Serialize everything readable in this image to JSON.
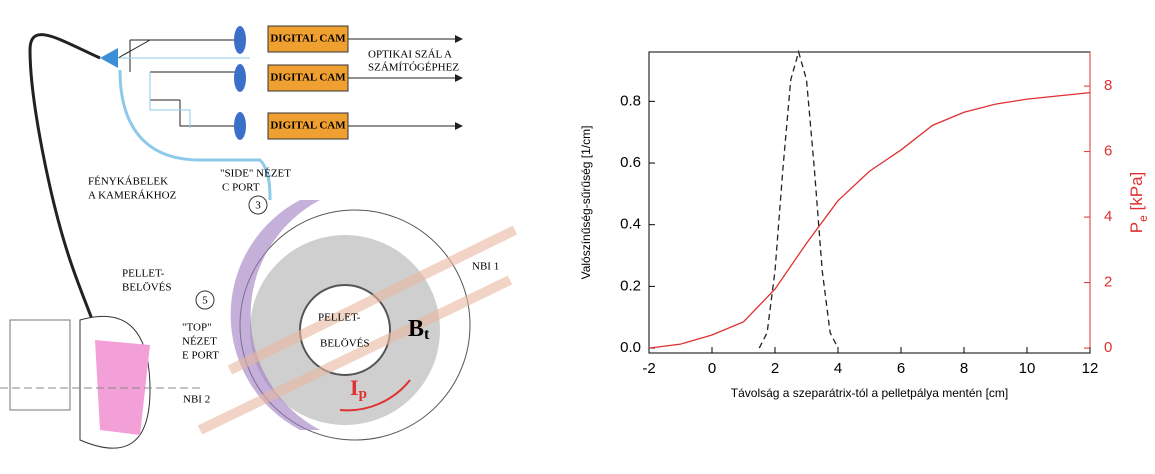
{
  "diagram": {
    "cams": [
      "DIGITAL CAM",
      "DIGITAL CAM",
      "DIGITAL CAM"
    ],
    "fiber_label": [
      "OPTIKAI SZÁL A",
      "SZÁMÍTÓGÉPHEZ"
    ],
    "cable_label": [
      "FÉNYKÁBELEK",
      "A KAMERÁKHOZ"
    ],
    "side_view": [
      "\"SIDE\" NÉZET",
      "C PORT"
    ],
    "side_port_number": "3",
    "top_port_number": "5",
    "top_view": [
      "\"TOP\"",
      "NÉZET",
      "E PORT"
    ],
    "pellet_left": [
      "PELLET-",
      "BELÖVÉS"
    ],
    "pellet_center": [
      "PELLET-",
      "BELÖVÉS"
    ],
    "nbi1": "NBI 1",
    "nbi2": "NBI 2",
    "bt": [
      "B",
      "t"
    ],
    "ip": [
      "I",
      "p"
    ]
  },
  "chart_data": {
    "type": "line",
    "xlabel": "Távolság a szeparátrix-tól a pelletpálya mentén [cm]",
    "ylabel": "Valószínűség-sűrűség [1/cm]",
    "y2label_parts": [
      "P",
      "e",
      " [kPa]"
    ],
    "xlim": [
      -2,
      12
    ],
    "xticks": [
      -2,
      0,
      2,
      4,
      6,
      8,
      10,
      12
    ],
    "ylim": [
      -0.016,
      0.96
    ],
    "yticks": [
      {
        "value": 0,
        "label": "0.0"
      },
      0.2,
      0.4,
      0.6,
      0.8
    ],
    "y2lim": [
      -0.15,
      9.04
    ],
    "y2ticks": [
      0,
      2,
      4,
      6,
      8
    ],
    "y2color": "#e03030",
    "series": [
      {
        "x": [
          1.5,
          1.75,
          2,
          2.25,
          2.5,
          2.75,
          3,
          3.25,
          3.5,
          3.75,
          4
        ],
        "values": [
          0,
          0.05,
          0.25,
          0.58,
          0.87,
          0.96,
          0.87,
          0.58,
          0.25,
          0.05,
          0
        ],
        "color": "#222222",
        "dash": true
      },
      {
        "x": [
          -2,
          -1,
          0,
          1,
          2,
          3,
          4,
          5,
          6,
          7,
          8,
          9,
          10,
          11,
          12
        ],
        "values": [
          0,
          0.12,
          0.4,
          0.8,
          1.8,
          3.2,
          4.5,
          5.4,
          6.05,
          6.8,
          7.2,
          7.45,
          7.6,
          7.7,
          7.8
        ],
        "color": "#e03030",
        "axis": "y2"
      }
    ]
  }
}
